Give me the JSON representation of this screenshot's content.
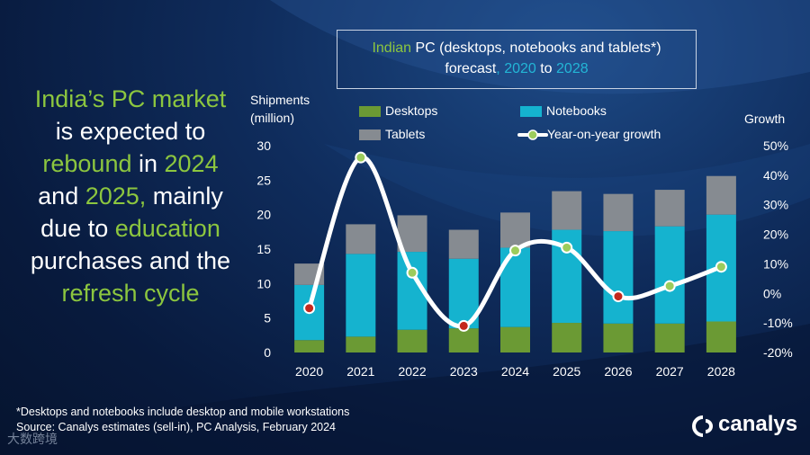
{
  "headline": {
    "line1": "India’s PC market",
    "line2": "is expected to",
    "line3a": "rebound",
    "line3b": " in ",
    "line3c": "2024",
    "line4a": "and ",
    "line4b": "2025,",
    "line4c": " mainly",
    "line5a": "due to ",
    "line5b": "education",
    "line6": "purchases and the",
    "line7": "refresh cycle"
  },
  "colors": {
    "desktops": "#6b9a34",
    "notebooks": "#15b3cf",
    "tablets": "#868b91",
    "growth_line": "#ffffff",
    "point_positive": "#9ccc5c",
    "point_negative": "#c4281c",
    "highlight_green": "#8cc63f",
    "highlight_blue": "#23b6d6"
  },
  "chart_data": {
    "type": "bar",
    "title": {
      "part1": "Indian",
      "part2": " PC (desktops, notebooks and tablets*)",
      "part3": "forecast",
      "part4": ", ",
      "part5": "2020",
      "part6": " to ",
      "part7": "2028"
    },
    "ylabel_left": "Shipments (million)",
    "ylabel_left_line1": "Shipments",
    "ylabel_left_line2": "(million)",
    "ylabel_right": "Growth",
    "categories": [
      "2020",
      "2021",
      "2022",
      "2023",
      "2024",
      "2025",
      "2026",
      "2027",
      "2028"
    ],
    "series": [
      {
        "name": "Desktops",
        "values": [
          1.8,
          2.3,
          3.3,
          3.5,
          3.7,
          4.3,
          4.2,
          4.2,
          4.5
        ]
      },
      {
        "name": "Notebooks",
        "values": [
          8.0,
          12.0,
          11.3,
          10.1,
          11.5,
          13.5,
          13.4,
          14.1,
          15.5
        ]
      },
      {
        "name": "Tablets",
        "values": [
          3.1,
          4.3,
          5.3,
          4.2,
          5.1,
          5.6,
          5.4,
          5.3,
          5.6
        ]
      }
    ],
    "growth": {
      "name": "Year-on-year growth",
      "values": [
        -5,
        46,
        7,
        -11,
        14.5,
        15.5,
        -1,
        2.5,
        9
      ],
      "axis_unit": "%"
    },
    "ylim_left": [
      0,
      30
    ],
    "yticks_left": [
      "0",
      "5",
      "10",
      "15",
      "20",
      "25",
      "30"
    ],
    "ylim_right": [
      -20,
      50
    ],
    "yticks_right": [
      "-20%",
      "-10%",
      "0%",
      "10%",
      "20%",
      "30%",
      "40%",
      "50%"
    ],
    "legend": [
      "Desktops",
      "Notebooks",
      "Tablets",
      "Year-on-year growth"
    ],
    "stacked": true
  },
  "footnote": {
    "line1": "*Desktops and notebooks  include desktop and mobile workstations",
    "line2": "Source:  Canalys estimates (sell-in), PC Analysis, February 2024"
  },
  "brand": "canalys",
  "watermark": "大数跨境"
}
